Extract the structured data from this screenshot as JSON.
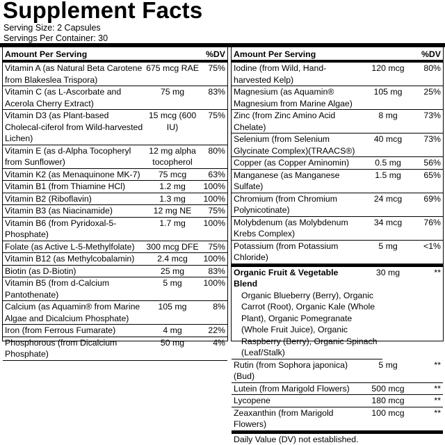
{
  "header": {
    "title": "Supplement Facts",
    "serving_size": "Serving Size: 2 Capsules",
    "servings_per_container": "Servings Per Container: 30"
  },
  "columns": [
    {
      "heading": {
        "amount": "Amount Per Serving",
        "dv": "%DV"
      },
      "rows": [
        {
          "name": "Vitamin A (as Natural Beta Carotene from Blakeslea Trispora)",
          "amount": "675 mcg RAE",
          "dv": "75%"
        },
        {
          "name": "Vitamin C (as L-Ascorbate and Acerola Cherry Extract)",
          "amount": "75 mg",
          "dv": "83%"
        },
        {
          "name": "Vitamin D3 (as Plant-based Cholecal-ciferol from Wild-harvested Lichen)",
          "amount": "15 mcg (600 IU)",
          "dv": "75%"
        },
        {
          "name": "Vitamin E (as d-Alpha Tocopheryl from Sunflower)",
          "amount": "12 mg alpha tocopherol",
          "dv": "80%"
        },
        {
          "name": "Vitamin K2 (as Menaquinone MK-7)",
          "amount": "75 mcg",
          "dv": "63%"
        },
        {
          "name": "Vitamin B1 (from Thiamine HCl)",
          "amount": "1.2 mg",
          "dv": "100%"
        },
        {
          "name": "Vitamin B2 (Riboflavin)",
          "amount": "1.3 mg",
          "dv": "100%"
        },
        {
          "name": "Vitamin B3 (as Niacinamide)",
          "amount": "12 mg NE",
          "dv": "75%"
        },
        {
          "name": "Vitamin B6 (from Pyridoxal-5-Phosphate)",
          "amount": "1.7 mg",
          "dv": "100%"
        },
        {
          "name": "Folate (as Active L-5-Methylfolate)",
          "amount": "300 mcg DFE",
          "dv": "75%"
        },
        {
          "name": "Vitamin B12 (as Methylcobalamin)",
          "amount": "2.4 mcg",
          "dv": "100%"
        },
        {
          "name": "Biotin (as D-Biotin)",
          "amount": "25 mg",
          "dv": "83%"
        },
        {
          "name": "Vitamin B5 (from d-Calcium Pantothenate)",
          "amount": "5 mg",
          "dv": "100%"
        },
        {
          "name": "Calcium (as Aquamin® from Marine Algae and Dicalcium Phosphate)",
          "amount": "105 mg",
          "dv": "8%"
        },
        {
          "name": "Iron (from Ferrous Fumarate)",
          "amount": "4 mg",
          "dv": "22%"
        },
        {
          "name": "Phosphorous (from Dicalcium Phosphate)",
          "amount": "50 mg",
          "dv": "4%"
        }
      ]
    },
    {
      "heading": {
        "amount": "Amount Per Serving",
        "dv": "%DV"
      },
      "rows": [
        {
          "name": "Iodine (from Wild, Hand-harvested Kelp)",
          "amount": "120 mcg",
          "dv": "80%"
        },
        {
          "name": "Magnesium (as Aquamin® Magnesium from Marine Algae)",
          "amount": "105 mg",
          "dv": "25%"
        },
        {
          "name": "Zinc (from Zinc Amino Acid Chelate)",
          "amount": "8 mg",
          "dv": "73%"
        },
        {
          "name": "Selenium (from Selenium Glycinate Complex)(TRAACS®)",
          "amount": "40 mcg",
          "dv": "73%"
        },
        {
          "name": "Copper (as Copper Aminomin)",
          "amount": "0.5 mg",
          "dv": "56%"
        },
        {
          "name": "Manganese (as Manganese Sulfate)",
          "amount": "1.5 mg",
          "dv": "65%"
        },
        {
          "name": "Chromium (from Chromium Polynicotinate)",
          "amount": "24 mcg",
          "dv": "69%"
        },
        {
          "name": "Molybdenum (as Molybdenum Krebs Complex)",
          "amount": "34 mcg",
          "dv": "76%"
        },
        {
          "name": "Potassium (from Potassium Chloride)",
          "amount": "5 mg",
          "dv": "<1%"
        }
      ],
      "blend": {
        "name": "Organic Fruit & Vegetable Blend",
        "amount": "30 mg",
        "dv": "**",
        "ingredients": "Organic Blueberry (Berry), Organic Carrot (Root), Organic Kale (Whole Plant), Organic Pomegranate (Whole Fruit Juice), Organic Raspberry (Berry), Organic Spinach (Leaf/Stalk)"
      },
      "extra_rows": [
        {
          "name": "Rutin (from Sophora japonica)(Bud)",
          "amount": "5 mg",
          "dv": "**"
        },
        {
          "name": "Lutein (from Marigold Flowers)",
          "amount": "500 mcg",
          "dv": "**"
        },
        {
          "name": "Lycopene",
          "amount": "180 mcg",
          "dv": "**"
        },
        {
          "name": "Zeaxanthin (from Marigold Flowers)",
          "amount": "100 mcg",
          "dv": "**"
        }
      ],
      "footnote": "Daily Value (DV) not established."
    }
  ]
}
